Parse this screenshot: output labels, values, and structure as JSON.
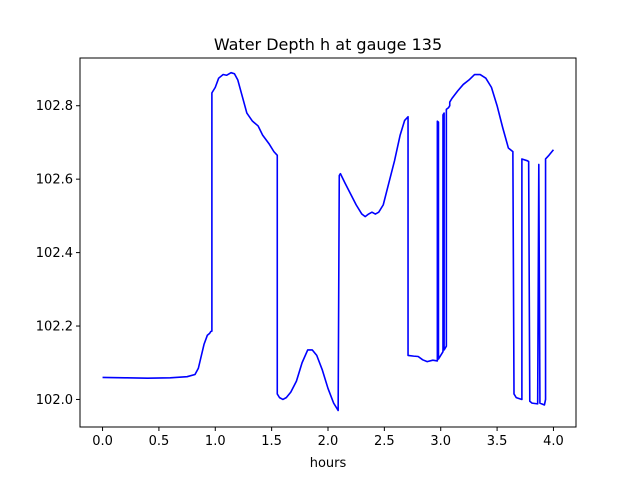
{
  "chart_data": {
    "type": "line",
    "title": "Water Depth h at gauge 135",
    "xlabel": "hours",
    "ylabel": "",
    "xlim": [
      -0.2,
      4.2
    ],
    "ylim": [
      101.925,
      102.93
    ],
    "xticks": [
      0.0,
      0.5,
      1.0,
      1.5,
      2.0,
      2.5,
      3.0,
      3.5,
      4.0
    ],
    "xtick_labels": [
      "0.0",
      "0.5",
      "1.0",
      "1.5",
      "2.0",
      "2.5",
      "3.0",
      "3.5",
      "4.0"
    ],
    "yticks": [
      102.0,
      102.2,
      102.4,
      102.6,
      102.8
    ],
    "ytick_labels": [
      "102.0",
      "102.2",
      "102.4",
      "102.6",
      "102.8"
    ],
    "grid": false,
    "legend": "none",
    "series": [
      {
        "color": "#0000ff",
        "x": [
          0.0,
          0.2,
          0.4,
          0.6,
          0.75,
          0.82,
          0.85,
          0.9,
          0.93,
          0.95,
          0.96,
          0.97,
          0.97,
          1.0,
          1.03,
          1.07,
          1.1,
          1.14,
          1.17,
          1.2,
          1.24,
          1.28,
          1.33,
          1.38,
          1.42,
          1.48,
          1.52,
          1.55,
          1.55,
          1.57,
          1.6,
          1.63,
          1.67,
          1.72,
          1.77,
          1.82,
          1.86,
          1.9,
          1.95,
          2.0,
          2.05,
          2.09,
          2.1,
          2.11,
          2.15,
          2.2,
          2.25,
          2.3,
          2.33,
          2.36,
          2.39,
          2.42,
          2.45,
          2.49,
          2.54,
          2.59,
          2.64,
          2.68,
          2.71,
          2.71,
          2.76,
          2.8,
          2.84,
          2.88,
          2.93,
          2.97,
          2.97,
          2.98,
          2.98,
          3.02,
          3.02,
          3.03,
          3.03,
          3.04,
          3.05,
          3.05,
          3.07,
          3.08,
          3.08,
          3.1,
          3.15,
          3.2,
          3.25,
          3.3,
          3.35,
          3.4,
          3.45,
          3.5,
          3.55,
          3.6,
          3.64,
          3.65,
          3.67,
          3.72,
          3.72,
          3.77,
          3.78,
          3.79,
          3.81,
          3.86,
          3.87,
          3.88,
          3.92,
          3.93,
          3.93,
          3.96,
          4.0
        ],
        "y": [
          102.06,
          102.059,
          102.058,
          102.059,
          102.062,
          102.068,
          102.085,
          102.15,
          102.175,
          102.18,
          102.185,
          102.186,
          102.835,
          102.85,
          102.875,
          102.885,
          102.883,
          102.89,
          102.887,
          102.87,
          102.825,
          102.78,
          102.758,
          102.745,
          102.72,
          102.695,
          102.675,
          102.665,
          102.015,
          102.005,
          102.0,
          102.005,
          102.02,
          102.05,
          102.1,
          102.135,
          102.135,
          102.12,
          102.08,
          102.03,
          101.99,
          101.97,
          102.61,
          102.615,
          102.59,
          102.56,
          102.53,
          102.505,
          102.498,
          102.505,
          102.51,
          102.505,
          102.51,
          102.53,
          102.59,
          102.65,
          102.72,
          102.76,
          102.77,
          102.12,
          102.118,
          102.117,
          102.108,
          102.103,
          102.107,
          102.105,
          102.758,
          102.755,
          102.11,
          102.13,
          102.775,
          102.78,
          102.135,
          102.14,
          102.145,
          102.79,
          102.795,
          102.8,
          102.81,
          102.82,
          102.84,
          102.858,
          102.87,
          102.885,
          102.885,
          102.875,
          102.85,
          102.8,
          102.74,
          102.685,
          102.675,
          102.015,
          102.005,
          102.0,
          102.655,
          102.65,
          102.648,
          101.995,
          101.99,
          101.988,
          102.64,
          101.99,
          101.985,
          102.0,
          102.655,
          102.665,
          102.68
        ]
      }
    ]
  }
}
